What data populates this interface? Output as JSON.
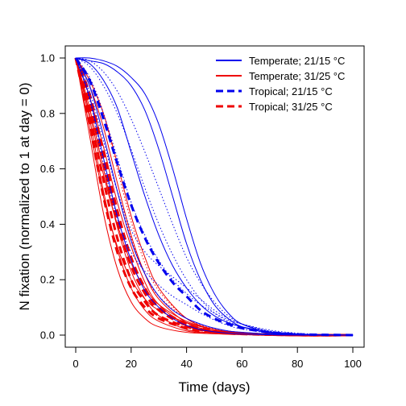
{
  "chart_data": {
    "type": "line",
    "title": "",
    "xlabel": "Time (days)",
    "ylabel": "N fixation (normalized to 1 at day = 0)",
    "xlim": [
      0,
      100
    ],
    "ylim": [
      0,
      1
    ],
    "x_ticks": [
      0,
      20,
      40,
      60,
      80,
      100
    ],
    "x_tick_labels": [
      "0",
      "20",
      "40",
      "60",
      "80",
      "100"
    ],
    "y_ticks": [
      0,
      0.2,
      0.4,
      0.6,
      0.8,
      1.0
    ],
    "y_tick_labels": [
      "0.0",
      "0.2",
      "0.4",
      "0.6",
      "0.8",
      "1.0"
    ],
    "grid": false,
    "legend_position": "top-right",
    "colors": {
      "blue": "#0000ee",
      "red": "#ee0000"
    },
    "legend": [
      {
        "label": "Temperate; 21/15 °C",
        "color": "#0000ee",
        "style": "solid"
      },
      {
        "label": "Temperate; 31/25 °C",
        "color": "#ee0000",
        "style": "solid"
      },
      {
        "label": "Tropical; 21/15 °C",
        "color": "#0000ee",
        "style": "dashed"
      },
      {
        "label": "Tropical; 31/25 °C",
        "color": "#ee0000",
        "style": "dashed"
      }
    ],
    "series": [
      {
        "group": "temperate-31",
        "color": "#ee0000",
        "style": "thin-solid",
        "x": [
          0,
          5,
          10,
          15,
          20,
          25,
          30,
          40,
          50,
          60,
          80,
          100
        ],
        "y": [
          1.0,
          0.72,
          0.44,
          0.24,
          0.12,
          0.06,
          0.03,
          0.01,
          0.005,
          0.002,
          0.0,
          0.0
        ]
      },
      {
        "group": "temperate-31",
        "color": "#ee0000",
        "style": "thin-solid",
        "x": [
          0,
          5,
          10,
          15,
          20,
          25,
          30,
          40,
          50,
          60,
          80,
          100
        ],
        "y": [
          1.0,
          0.78,
          0.52,
          0.31,
          0.17,
          0.09,
          0.05,
          0.015,
          0.005,
          0.002,
          0.0,
          0.0
        ]
      },
      {
        "group": "temperate-31",
        "color": "#ee0000",
        "style": "thin-solid",
        "x": [
          0,
          5,
          10,
          15,
          20,
          25,
          30,
          40,
          50,
          60,
          80,
          100
        ],
        "y": [
          1.0,
          0.82,
          0.6,
          0.39,
          0.23,
          0.13,
          0.07,
          0.02,
          0.008,
          0.003,
          0.0,
          0.0
        ]
      },
      {
        "group": "temperate-31",
        "color": "#ee0000",
        "style": "thin-solid",
        "x": [
          0,
          5,
          10,
          15,
          20,
          25,
          30,
          40,
          50,
          60,
          80,
          100
        ],
        "y": [
          1.0,
          0.86,
          0.68,
          0.48,
          0.32,
          0.19,
          0.11,
          0.035,
          0.012,
          0.004,
          0.0,
          0.0
        ]
      },
      {
        "group": "temperate-31",
        "color": "#ee0000",
        "style": "thin-solid",
        "x": [
          0,
          5,
          10,
          15,
          20,
          25,
          30,
          40,
          50,
          60,
          80,
          100
        ],
        "y": [
          1.0,
          0.9,
          0.75,
          0.55,
          0.36,
          0.22,
          0.13,
          0.045,
          0.015,
          0.005,
          0.0,
          0.0
        ]
      },
      {
        "group": "temperate-31",
        "color": "#ee0000",
        "style": "thin-solid",
        "x": [
          0,
          5,
          10,
          15,
          20,
          25,
          30,
          40,
          50,
          60,
          80,
          100
        ],
        "y": [
          1.0,
          0.92,
          0.8,
          0.62,
          0.43,
          0.28,
          0.17,
          0.06,
          0.02,
          0.007,
          0.001,
          0.0
        ]
      },
      {
        "group": "temperate-31",
        "color": "#ee0000",
        "style": "thin-solid",
        "x": [
          0,
          5,
          10,
          15,
          20,
          25,
          30,
          40,
          50,
          60,
          80,
          100
        ],
        "y": [
          1.0,
          0.75,
          0.5,
          0.32,
          0.2,
          0.13,
          0.09,
          0.045,
          0.02,
          0.008,
          0.001,
          0.0
        ]
      },
      {
        "group": "temperate-31",
        "color": "#ee0000",
        "style": "thin-solid",
        "x": [
          0,
          5,
          10,
          15,
          20,
          25,
          30,
          40,
          50,
          60,
          80,
          100
        ],
        "y": [
          1.0,
          0.8,
          0.58,
          0.4,
          0.26,
          0.17,
          0.11,
          0.05,
          0.02,
          0.007,
          0.001,
          0.0
        ]
      },
      {
        "group": "tropical-31",
        "color": "#ee0000",
        "style": "thick-dashed",
        "x": [
          0,
          5,
          10,
          15,
          20,
          25,
          30,
          40,
          50,
          60,
          80,
          100
        ],
        "y": [
          1.0,
          0.76,
          0.5,
          0.3,
          0.17,
          0.1,
          0.06,
          0.025,
          0.01,
          0.004,
          0.0,
          0.0
        ]
      },
      {
        "group": "tropical-31",
        "color": "#ee0000",
        "style": "thick-dashed",
        "x": [
          0,
          5,
          10,
          15,
          20,
          25,
          30,
          40,
          50,
          60,
          80,
          100
        ],
        "y": [
          1.0,
          0.8,
          0.56,
          0.35,
          0.2,
          0.12,
          0.07,
          0.03,
          0.012,
          0.005,
          0.0,
          0.0
        ]
      },
      {
        "group": "tropical-31",
        "color": "#ee0000",
        "style": "thick-dashed",
        "x": [
          0,
          5,
          10,
          15,
          20,
          25,
          30,
          40,
          50,
          60,
          80,
          100
        ],
        "y": [
          1.0,
          0.84,
          0.62,
          0.41,
          0.25,
          0.15,
          0.09,
          0.035,
          0.013,
          0.005,
          0.0,
          0.0
        ]
      },
      {
        "group": "tropical-31",
        "color": "#ee0000",
        "style": "thick-dashed",
        "x": [
          0,
          5,
          10,
          15,
          20,
          25,
          30,
          40,
          50,
          60,
          80,
          100
        ],
        "y": [
          1.0,
          0.87,
          0.66,
          0.45,
          0.28,
          0.17,
          0.1,
          0.04,
          0.015,
          0.006,
          0.0,
          0.0
        ]
      },
      {
        "group": "tropical-31",
        "color": "#ee0000",
        "style": "thin-dotted",
        "x": [
          0,
          5,
          10,
          15,
          20,
          25,
          30,
          40,
          50,
          60,
          80,
          100
        ],
        "y": [
          1.0,
          0.9,
          0.72,
          0.52,
          0.35,
          0.22,
          0.14,
          0.06,
          0.025,
          0.01,
          0.001,
          0.0
        ]
      },
      {
        "group": "tropical-31",
        "color": "#ee0000",
        "style": "thin-dotted",
        "x": [
          0,
          5,
          10,
          15,
          20,
          25,
          30,
          40,
          50,
          60,
          80,
          100
        ],
        "y": [
          1.0,
          0.93,
          0.8,
          0.6,
          0.41,
          0.26,
          0.16,
          0.06,
          0.022,
          0.008,
          0.001,
          0.0
        ]
      },
      {
        "group": "temperate-21",
        "color": "#0000ee",
        "style": "thin-solid",
        "x": [
          0,
          5,
          10,
          15,
          20,
          25,
          30,
          35,
          40,
          45,
          50,
          55,
          60,
          70,
          80,
          90,
          100
        ],
        "y": [
          1.0,
          1.0,
          0.99,
          0.97,
          0.93,
          0.87,
          0.76,
          0.6,
          0.42,
          0.26,
          0.15,
          0.08,
          0.04,
          0.01,
          0.003,
          0.001,
          0.0
        ]
      },
      {
        "group": "temperate-21",
        "color": "#0000ee",
        "style": "thin-solid",
        "x": [
          0,
          5,
          10,
          15,
          20,
          25,
          30,
          35,
          40,
          45,
          50,
          55,
          60,
          70,
          80,
          90,
          100
        ],
        "y": [
          1.0,
          0.99,
          0.98,
          0.95,
          0.9,
          0.81,
          0.67,
          0.5,
          0.33,
          0.2,
          0.11,
          0.06,
          0.03,
          0.008,
          0.002,
          0.0,
          0.0
        ]
      },
      {
        "group": "temperate-21",
        "color": "#0000ee",
        "style": "thin-solid",
        "x": [
          0,
          5,
          10,
          15,
          20,
          25,
          30,
          35,
          40,
          45,
          50,
          55,
          60,
          70,
          80,
          90,
          100
        ],
        "y": [
          1.0,
          0.98,
          0.92,
          0.82,
          0.66,
          0.5,
          0.36,
          0.25,
          0.17,
          0.11,
          0.07,
          0.045,
          0.03,
          0.012,
          0.004,
          0.001,
          0.0
        ]
      },
      {
        "group": "temperate-21",
        "color": "#0000ee",
        "style": "thin-solid",
        "x": [
          0,
          5,
          10,
          15,
          20,
          25,
          30,
          35,
          40,
          45,
          50,
          55,
          60,
          70,
          80,
          90,
          100
        ],
        "y": [
          1.0,
          0.9,
          0.72,
          0.52,
          0.34,
          0.22,
          0.14,
          0.09,
          0.06,
          0.04,
          0.025,
          0.015,
          0.01,
          0.004,
          0.001,
          0.0,
          0.0
        ]
      },
      {
        "group": "temperate-21",
        "color": "#0000ee",
        "style": "thin-solid",
        "x": [
          0,
          5,
          10,
          15,
          20,
          25,
          30,
          35,
          40,
          45,
          50,
          55,
          60,
          70,
          80,
          90,
          100
        ],
        "y": [
          1.0,
          0.86,
          0.64,
          0.43,
          0.27,
          0.16,
          0.1,
          0.06,
          0.035,
          0.02,
          0.012,
          0.007,
          0.004,
          0.001,
          0.0,
          0.0,
          0.0
        ]
      },
      {
        "group": "tropical-21",
        "color": "#0000ee",
        "style": "thick-dashed",
        "x": [
          0,
          5,
          10,
          15,
          20,
          25,
          30,
          35,
          40,
          45,
          50,
          55,
          60,
          70,
          80,
          90,
          100
        ],
        "y": [
          1.0,
          0.92,
          0.78,
          0.62,
          0.47,
          0.35,
          0.26,
          0.19,
          0.14,
          0.09,
          0.06,
          0.04,
          0.025,
          0.01,
          0.003,
          0.001,
          0.0
        ]
      },
      {
        "group": "tropical-21",
        "color": "#0000ee",
        "style": "thin-dotted",
        "x": [
          0,
          5,
          10,
          15,
          20,
          25,
          30,
          35,
          40,
          45,
          50,
          55,
          60,
          70,
          80,
          90,
          100
        ],
        "y": [
          1.0,
          0.97,
          0.9,
          0.8,
          0.67,
          0.53,
          0.4,
          0.29,
          0.2,
          0.13,
          0.08,
          0.05,
          0.03,
          0.01,
          0.003,
          0.001,
          0.0
        ]
      },
      {
        "group": "tropical-21",
        "color": "#0000ee",
        "style": "thin-dotted",
        "x": [
          0,
          5,
          10,
          15,
          20,
          25,
          30,
          35,
          40,
          45,
          50,
          55,
          60,
          70,
          80,
          90,
          100
        ],
        "y": [
          1.0,
          0.99,
          0.95,
          0.88,
          0.78,
          0.66,
          0.53,
          0.4,
          0.28,
          0.19,
          0.12,
          0.07,
          0.04,
          0.013,
          0.004,
          0.001,
          0.0
        ]
      },
      {
        "group": "tropical-21",
        "color": "#0000ee",
        "style": "thin-dotted",
        "x": [
          0,
          5,
          10,
          15,
          20,
          25,
          30,
          35,
          40,
          45,
          50,
          55,
          60,
          70,
          80,
          90,
          100
        ],
        "y": [
          1.0,
          0.93,
          0.8,
          0.64,
          0.48,
          0.36,
          0.27,
          0.2,
          0.15,
          0.11,
          0.08,
          0.055,
          0.04,
          0.018,
          0.007,
          0.002,
          0.0
        ]
      },
      {
        "group": "tropical-21",
        "color": "#0000ee",
        "style": "thin-dotted",
        "x": [
          0,
          5,
          10,
          15,
          20,
          25,
          30,
          35,
          40,
          45,
          50,
          55,
          60,
          70,
          80,
          90,
          100
        ],
        "y": [
          1.0,
          0.88,
          0.7,
          0.52,
          0.38,
          0.3,
          0.25,
          0.21,
          0.17,
          0.13,
          0.09,
          0.06,
          0.04,
          0.015,
          0.005,
          0.001,
          0.0
        ]
      },
      {
        "group": "tropical-21",
        "color": "#0000ee",
        "style": "thin-dotted",
        "x": [
          0,
          5,
          10,
          15,
          20,
          25,
          30,
          35,
          40,
          45,
          50,
          55,
          60,
          70,
          80,
          90,
          100
        ],
        "y": [
          1.0,
          0.85,
          0.62,
          0.42,
          0.3,
          0.23,
          0.18,
          0.14,
          0.11,
          0.08,
          0.055,
          0.035,
          0.022,
          0.008,
          0.002,
          0.0,
          0.0
        ]
      }
    ]
  }
}
